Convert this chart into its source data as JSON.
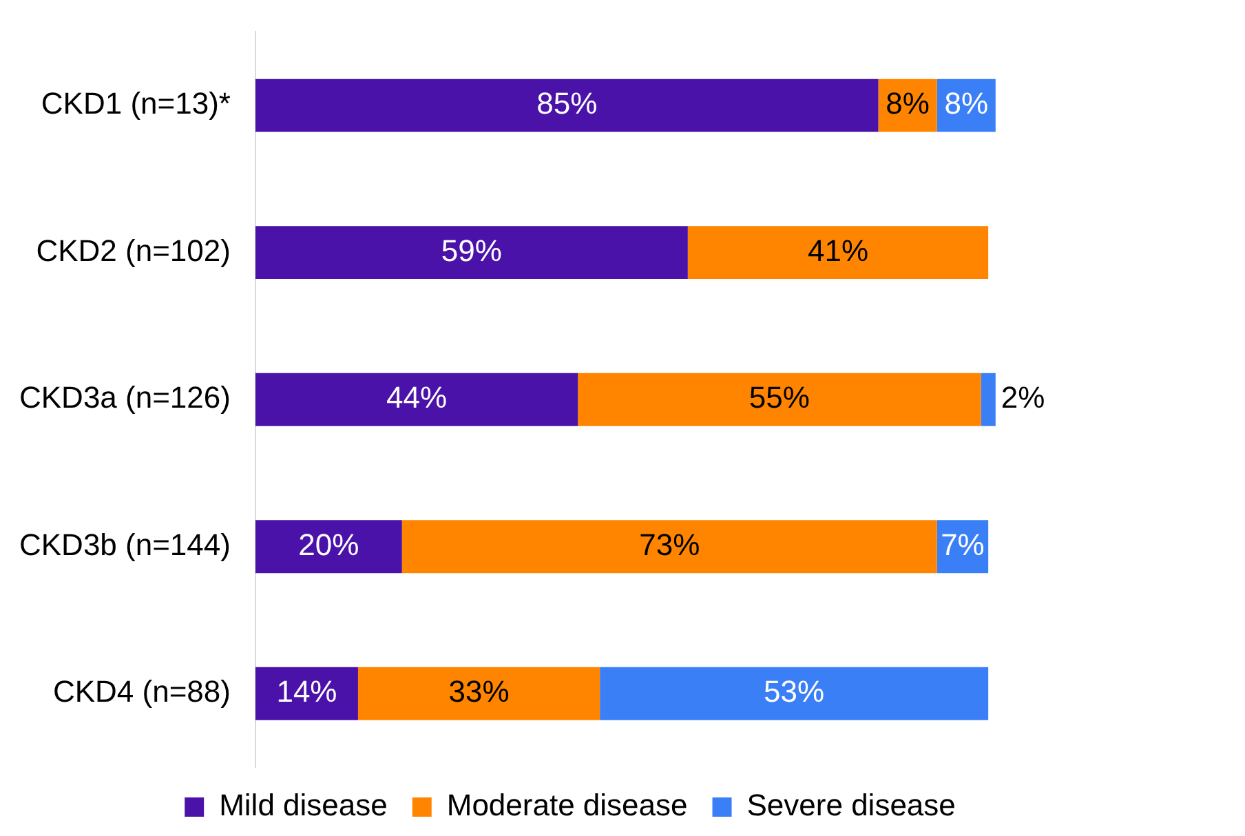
{
  "chart_data": {
    "type": "bar",
    "orientation": "horizontal",
    "stacked": true,
    "legend": "bottom",
    "tick_labels": "y",
    "categories": [
      "CKD1 (n=13)*",
      "CKD2 (n=102)",
      "CKD3a (n=126)",
      "CKD3b (n=144)",
      "CKD4 (n=88)"
    ],
    "series": [
      {
        "name": "Mild disease",
        "color": "#4a12a8",
        "values": [
          85,
          59,
          44,
          20,
          14
        ],
        "value_labels": [
          "85%",
          "59%",
          "44%",
          "20%",
          "14%"
        ]
      },
      {
        "name": "Moderate disease",
        "color": "#ff8500",
        "values": [
          8,
          41,
          55,
          73,
          33
        ],
        "value_labels": [
          "8%",
          "41%",
          "55%",
          "73%",
          "33%"
        ]
      },
      {
        "name": "Severe disease",
        "color": "#3a7ff6",
        "values": [
          8,
          null,
          2,
          7,
          53
        ],
        "value_labels": [
          "8%",
          null,
          "2%",
          "7%",
          "53%"
        ]
      }
    ]
  }
}
